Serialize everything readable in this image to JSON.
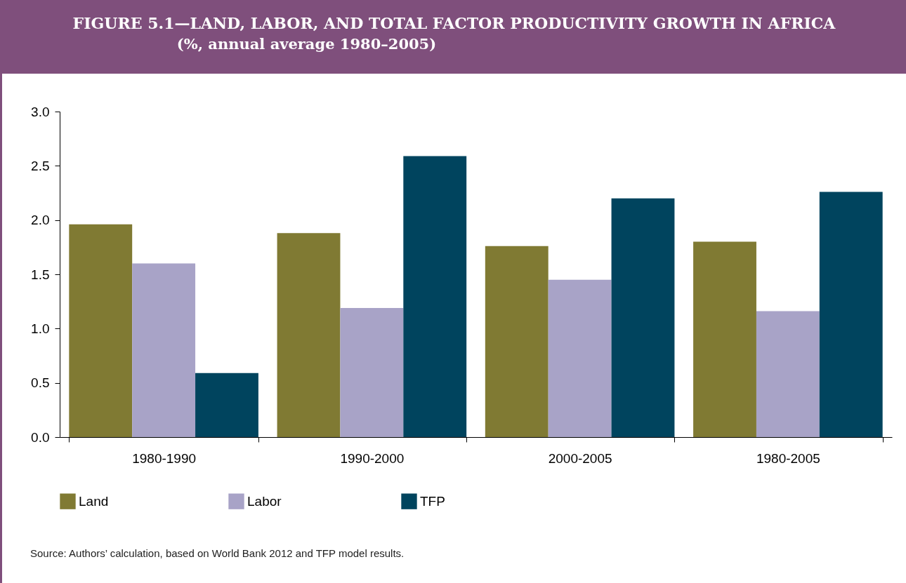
{
  "chart_data": {
    "type": "bar",
    "title": "FIGURE 5.1—LAND, LABOR, AND TOTAL FACTOR PRODUCTIVITY GROWTH IN AFRICA",
    "subtitle": "(%, annual average 1980–2005)",
    "categories": [
      "1980-1990",
      "1990-2000",
      "2000-2005",
      "1980-2005"
    ],
    "series": [
      {
        "name": "Land",
        "color": "#807a33",
        "values": [
          1.96,
          1.88,
          1.76,
          1.8
        ]
      },
      {
        "name": "Labor",
        "color": "#a8a3c7",
        "values": [
          1.6,
          1.19,
          1.45,
          1.16
        ]
      },
      {
        "name": "TFP",
        "color": "#00445e",
        "values": [
          0.59,
          2.59,
          2.2,
          2.26
        ]
      }
    ],
    "ylim": [
      0,
      3
    ],
    "yticks": [
      {
        "value": 0,
        "label": "0.0"
      },
      {
        "value": 0.5,
        "label": "0.5"
      },
      {
        "value": 1,
        "label": "1.0"
      },
      {
        "value": 1.5,
        "label": "1.5"
      },
      {
        "value": 2,
        "label": "2.0"
      },
      {
        "value": 2.5,
        "label": "2.5"
      },
      {
        "value": 3,
        "label": "3.0"
      }
    ],
    "grid": false,
    "legend": "bottom",
    "annotations": [
      "Source: Authors’ calculation, based on World Bank 2012 and TFP model results."
    ]
  }
}
